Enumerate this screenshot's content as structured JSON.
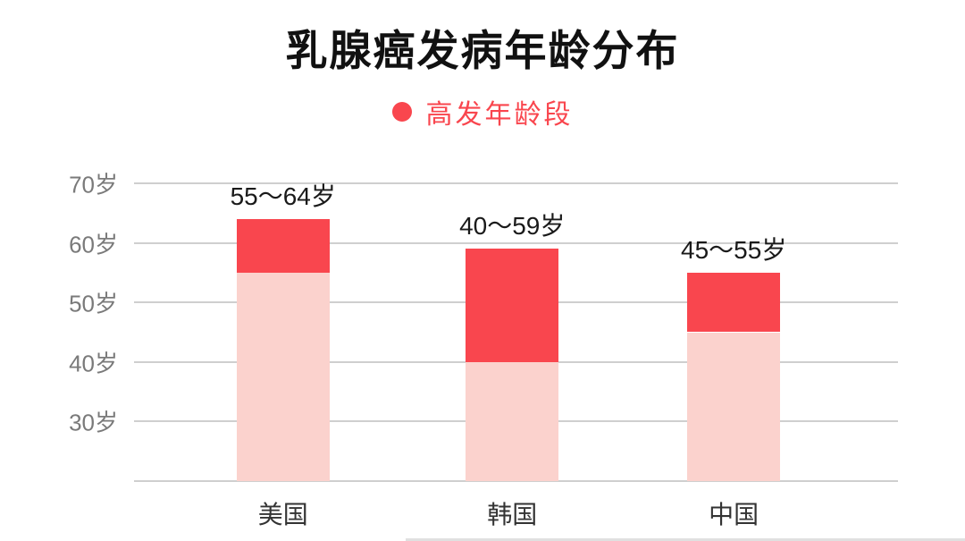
{
  "chart_data": {
    "type": "bar",
    "title": "乳腺癌发病年龄分布",
    "legend_label": "高发年龄段",
    "unit": "岁",
    "axis": {
      "ymin": 20,
      "ymax": 70,
      "gridlines": [
        70,
        60,
        50,
        40,
        30,
        20
      ],
      "ticks": [
        {
          "value": 70,
          "label": "70岁"
        },
        {
          "value": 60,
          "label": "60岁"
        },
        {
          "value": 50,
          "label": "50岁"
        },
        {
          "value": 40,
          "label": "40岁"
        },
        {
          "value": 30,
          "label": "30岁"
        }
      ]
    },
    "categories": [
      "美国",
      "韩国",
      "中国"
    ],
    "bars": [
      {
        "category": "美国",
        "range_label": "55～64岁",
        "bar_bottom": 20,
        "high_start": 55,
        "high_end": 64
      },
      {
        "category": "韩国",
        "range_label": "40～59岁",
        "bar_bottom": 20,
        "high_start": 40,
        "high_end": 59
      },
      {
        "category": "中国",
        "range_label": "45～55岁",
        "bar_bottom": 20,
        "high_start": 45,
        "high_end": 55
      }
    ],
    "colors": {
      "high_range": "#F9464E",
      "base_range": "#FBD2CD",
      "legend_text": "#F9464E",
      "gridline": "#CFCFCF",
      "axis_label": "#7A7A7A",
      "title": "#111111"
    }
  }
}
